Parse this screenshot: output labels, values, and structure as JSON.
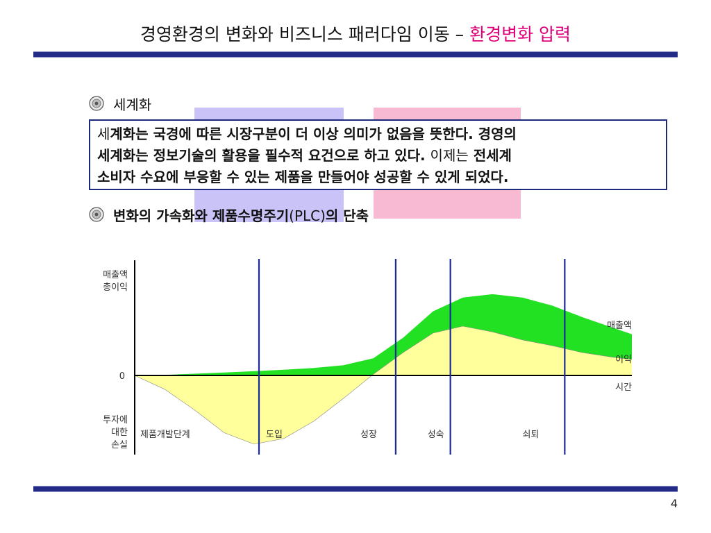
{
  "slide": {
    "title_main": "경영환경의 변화와 비즈니스 패러다임 이동 – ",
    "title_highlight": "환경변화 압력",
    "page_number": "4"
  },
  "bullets": {
    "first": "세계화",
    "second_a": "변화의 가속화와 제품수명주기",
    "second_b": "(PLC)",
    "second_c": "의 단축"
  },
  "callout": {
    "line1_a": "세",
    "line1_b": "계화는 국경에 따른 시장구분이 더 이상 의미가 없음을 뜻한다. 경영의",
    "line2_a": "세계화는 정보기술의 활용을 필수적 요건으로 하고 있다. ",
    "line2_b": "이제는",
    "line2_c": " 전세계",
    "line3": "소비자 수요에 부응할 수 있는 제품을 만들어야 성공할 수 있게 되었다."
  },
  "chart_data": {
    "type": "area",
    "x": [
      0,
      6,
      12,
      18,
      24,
      30,
      36,
      42,
      48,
      54,
      60,
      66,
      72,
      78,
      84,
      90,
      96,
      100
    ],
    "series": [
      {
        "name": "매출액",
        "values": [
          0,
          0.5,
          1.5,
          2.6,
          3.7,
          5,
          6.5,
          9,
          15,
          33,
          56,
          68,
          71,
          68,
          61,
          51,
          42,
          36
        ]
      },
      {
        "name": "이익",
        "values": [
          0,
          -12,
          -30,
          -50,
          -60,
          -55,
          -40,
          -20,
          1,
          20,
          37,
          43,
          38,
          31,
          26,
          20,
          16,
          14
        ]
      }
    ],
    "phase_boundaries": [
      25,
      52.5,
      63.5,
      86.5
    ],
    "phase_labels": [
      "제품개발단계",
      "도입",
      "성장",
      "성숙",
      "쇠퇴"
    ],
    "y_labels": {
      "positive": "매출액\n총이익",
      "zero": "0",
      "negative": "투자에\n대한\n손실"
    },
    "series_labels": [
      "매출액",
      "이익"
    ],
    "x_label": "시간",
    "xlim": [
      0,
      100
    ],
    "ylim": [
      -90,
      102
    ],
    "colors": {
      "sales_area": "#22e022",
      "profit_area": "#ffff9c",
      "loss_area": "#ffff9c",
      "phase_line": "#1b2a9a",
      "axis": "#000000"
    }
  }
}
